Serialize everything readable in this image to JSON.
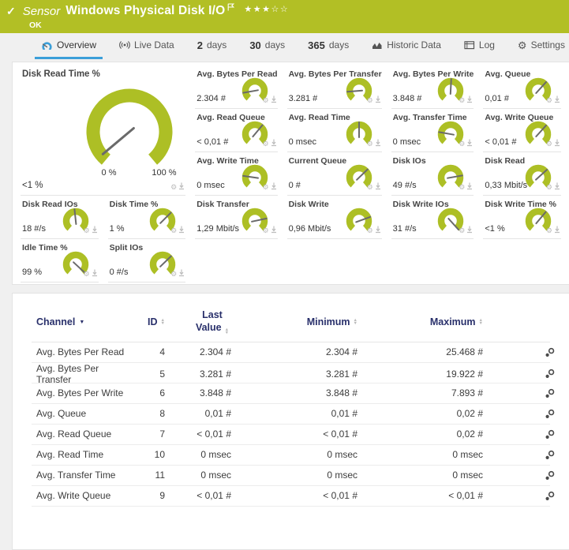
{
  "header": {
    "type_label": "Sensor",
    "title": "Windows Physical Disk I/O",
    "status": "OK",
    "stars": {
      "filled": 3,
      "total": 5
    }
  },
  "tabs": [
    {
      "label": "Overview",
      "icon": "gauge-icon",
      "active": true
    },
    {
      "label": "Live Data",
      "icon": "broadcast-icon",
      "active": false
    },
    {
      "num": "2",
      "label": "days",
      "active": false
    },
    {
      "num": "30",
      "label": "days",
      "active": false
    },
    {
      "num": "365",
      "label": "days",
      "active": false
    },
    {
      "label": "Historic Data",
      "icon": "chart-icon",
      "active": false
    },
    {
      "label": "Log",
      "icon": "log-icon",
      "active": false
    },
    {
      "label": "Settings",
      "icon": "gear-icon",
      "active": false
    }
  ],
  "overview": {
    "main_gauge": {
      "label": "Disk Read Time %",
      "value": "<1 %",
      "scale_min_label": "0 %",
      "scale_max_label": "100 %",
      "needle_deg": -130
    },
    "gauges": [
      {
        "label": "Avg. Bytes Per Read",
        "value": "2.304 #",
        "needle_deg": -100
      },
      {
        "label": "Avg. Bytes Per Transfer",
        "value": "3.281 #",
        "needle_deg": -95
      },
      {
        "label": "Avg. Bytes Per Write",
        "value": "3.848 #",
        "needle_deg": 3
      },
      {
        "label": "Avg. Queue",
        "value": "0,01 #",
        "needle_deg": 42
      },
      {
        "label": "Avg. Read Queue",
        "value": "< 0,01 #",
        "needle_deg": 40
      },
      {
        "label": "Avg. Read Time",
        "value": "0 msec",
        "needle_deg": 0
      },
      {
        "label": "Avg. Transfer Time",
        "value": "0 msec",
        "needle_deg": -80
      },
      {
        "label": "Avg. Write Queue",
        "value": "< 0,01 #",
        "needle_deg": 42
      },
      {
        "label": "Avg. Write Time",
        "value": "0 msec",
        "needle_deg": -82
      },
      {
        "label": "Current Queue",
        "value": "0 #",
        "needle_deg": 46
      },
      {
        "label": "Disk IOs",
        "value": "49 #/s",
        "needle_deg": 80
      },
      {
        "label": "Disk Read",
        "value": "0,33 Mbit/s",
        "needle_deg": 48
      },
      {
        "label": "Disk Read IOs",
        "value": "18 #/s",
        "needle_deg": -6
      },
      {
        "label": "Disk Time %",
        "value": "1 %",
        "needle_deg": 45
      },
      {
        "label": "Disk Transfer",
        "value": "1,29 Mbit/s",
        "needle_deg": 78
      },
      {
        "label": "Disk Write",
        "value": "0,96 Mbit/s",
        "needle_deg": 70
      },
      {
        "label": "Disk Write IOs",
        "value": "31 #/s",
        "needle_deg": 138
      },
      {
        "label": "Disk Write Time %",
        "value": "<1 %",
        "needle_deg": 40
      },
      {
        "label": "Idle Time %",
        "value": "99 %",
        "needle_deg": 133
      },
      {
        "label": "Split IOs",
        "value": "0 #/s",
        "needle_deg": 46
      }
    ]
  },
  "table": {
    "headers": {
      "channel": "Channel",
      "id": "ID",
      "last": "Last Value",
      "min": "Minimum",
      "max": "Maximum"
    },
    "rows": [
      {
        "channel": "Avg. Bytes Per Read",
        "id": "4",
        "last": "2.304 #",
        "min": "2.304 #",
        "max": "25.468 #"
      },
      {
        "channel": "Avg. Bytes Per Transfer",
        "id": "5",
        "last": "3.281 #",
        "min": "3.281 #",
        "max": "19.922 #"
      },
      {
        "channel": "Avg. Bytes Per Write",
        "id": "6",
        "last": "3.848 #",
        "min": "3.848 #",
        "max": "7.893 #"
      },
      {
        "channel": "Avg. Queue",
        "id": "8",
        "last": "0,01 #",
        "min": "0,01 #",
        "max": "0,02 #"
      },
      {
        "channel": "Avg. Read Queue",
        "id": "7",
        "last": "< 0,01 #",
        "min": "< 0,01 #",
        "max": "0,02 #"
      },
      {
        "channel": "Avg. Read Time",
        "id": "10",
        "last": "0 msec",
        "min": "0 msec",
        "max": "0 msec"
      },
      {
        "channel": "Avg. Transfer Time",
        "id": "11",
        "last": "0 msec",
        "min": "0 msec",
        "max": "0 msec"
      },
      {
        "channel": "Avg. Write Queue",
        "id": "9",
        "last": "< 0,01 #",
        "min": "< 0,01 #",
        "max": "< 0,01 #"
      }
    ]
  },
  "colors": {
    "brand_green": "#b2bf25",
    "gauge_green": "#adbf25",
    "accent_blue": "#3b9fd9",
    "header_navy": "#29306b",
    "needle_gray": "#6a6a6a"
  }
}
